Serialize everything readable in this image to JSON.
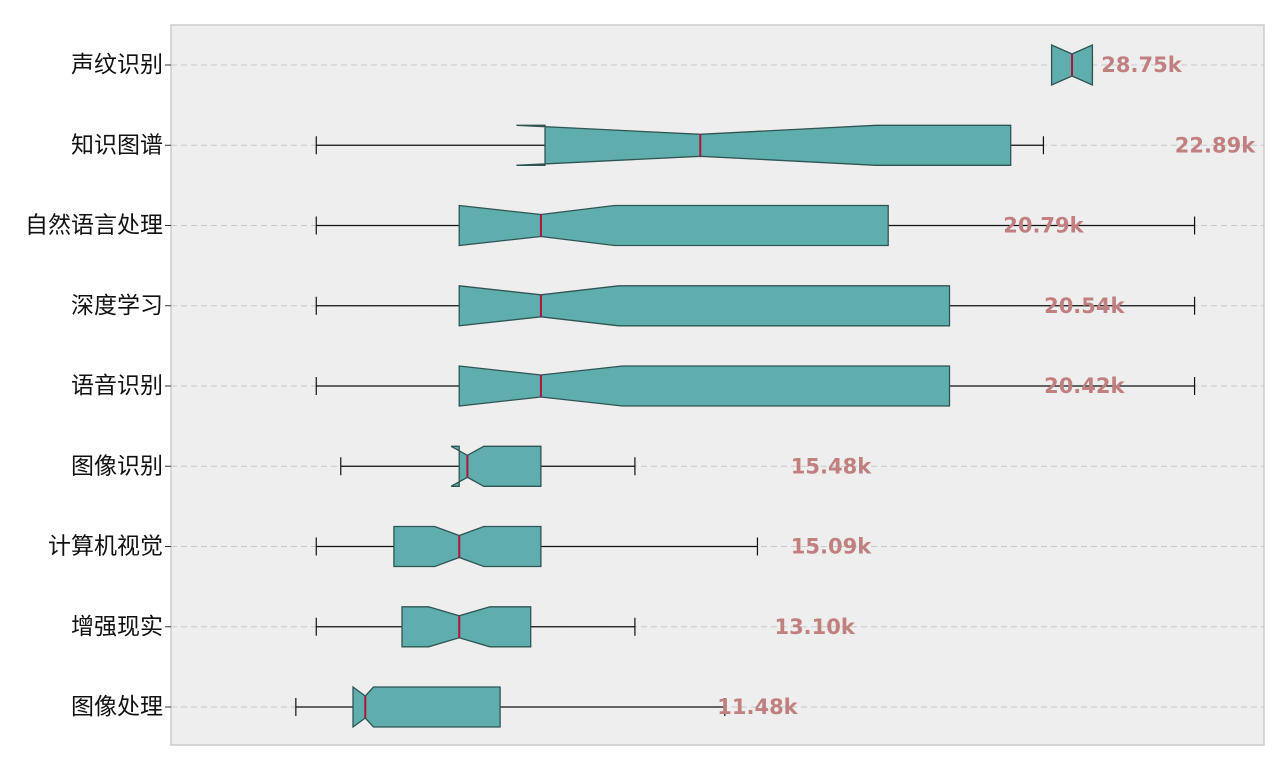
{
  "chart_data": {
    "type": "box",
    "orientation": "horizontal",
    "notched": true,
    "title": "",
    "xlabel": "",
    "ylabel": "",
    "x_ticks_visible": false,
    "grid": "y-dashed",
    "legend": "none",
    "colors": {
      "plot_bg": "#eeeeee",
      "plot_border": "#cccccc",
      "box_fill": "#5fadac",
      "box_edge": "#2f5553",
      "median": "#b0143c",
      "whisker": "#111111",
      "grid": "#c8c8c8",
      "annotation": "#c08080"
    },
    "categories": [
      "声纹识别",
      "知识图谱",
      "自然语言处理",
      "深度学习",
      "语音识别",
      "图像识别",
      "计算机视觉",
      "增强现实",
      "图像处理"
    ],
    "boxes": [
      {
        "label": "声纹识别",
        "whislo": 28.0,
        "q1": 28.0,
        "med": 28.5,
        "q3": 29.0,
        "whishi": 29.0,
        "notch_lo": 28.0,
        "notch_hi": 29.0,
        "annotation": "28.75k"
      },
      {
        "label": "知识图谱",
        "whislo": 10.0,
        "q1": 15.6,
        "med": 19.4,
        "q3": 27.0,
        "whishi": 27.8,
        "notch_lo": 14.9,
        "notch_hi": 23.7,
        "annotation": "22.89k"
      },
      {
        "label": "自然语言处理",
        "whislo": 10.0,
        "q1": 13.5,
        "med": 15.5,
        "q3": 24.0,
        "whishi": 31.5,
        "notch_lo": 13.5,
        "notch_hi": 17.3,
        "annotation": "20.79k"
      },
      {
        "label": "深度学习",
        "whislo": 10.0,
        "q1": 13.5,
        "med": 15.5,
        "q3": 25.5,
        "whishi": 31.5,
        "notch_lo": 13.5,
        "notch_hi": 17.4,
        "annotation": "20.54k"
      },
      {
        "label": "语音识别",
        "whislo": 10.0,
        "q1": 13.5,
        "med": 15.5,
        "q3": 25.5,
        "whishi": 31.5,
        "notch_lo": 13.5,
        "notch_hi": 17.5,
        "annotation": "20.42k"
      },
      {
        "label": "图像识别",
        "whislo": 10.6,
        "q1": 13.5,
        "med": 13.7,
        "q3": 15.5,
        "whishi": 17.8,
        "notch_lo": 13.3,
        "notch_hi": 14.1,
        "annotation": "15.48k"
      },
      {
        "label": "计算机视觉",
        "whislo": 10.0,
        "q1": 11.9,
        "med": 13.5,
        "q3": 15.5,
        "whishi": 20.8,
        "notch_lo": 12.9,
        "notch_hi": 14.1,
        "annotation": "15.09k"
      },
      {
        "label": "增强现实",
        "whislo": 10.0,
        "q1": 12.1,
        "med": 13.5,
        "q3": 15.25,
        "whishi": 17.8,
        "notch_lo": 12.75,
        "notch_hi": 14.25,
        "annotation": "13.10k"
      },
      {
        "label": "图像处理",
        "whislo": 9.5,
        "q1": 10.9,
        "med": 11.2,
        "q3": 14.5,
        "whishi": 20.0,
        "notch_lo": 10.9,
        "notch_hi": 11.4,
        "annotation": "11.48k"
      }
    ],
    "annotation_positions": [
      {
        "label": "声纹识别",
        "x": 30.2
      },
      {
        "label": "知识图谱",
        "x": 32.0
      },
      {
        "label": "自然语言处理",
        "x": 27.8
      },
      {
        "label": "深度学习",
        "x": 28.8
      },
      {
        "label": "语音识别",
        "x": 28.8
      },
      {
        "label": "图像识别",
        "x": 22.6
      },
      {
        "label": "计算机视觉",
        "x": 22.6
      },
      {
        "label": "增强现实",
        "x": 22.2
      },
      {
        "label": "图像处理",
        "x": 20.8
      }
    ]
  }
}
